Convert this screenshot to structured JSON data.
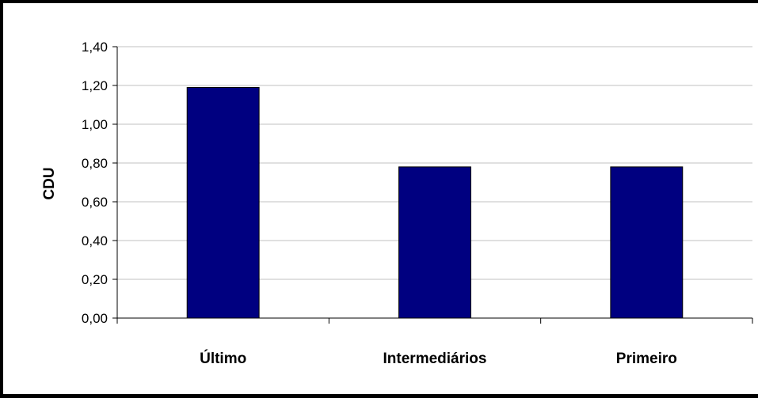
{
  "chart_data": {
    "type": "bar",
    "categories": [
      "Último",
      "Intermediários",
      "Primeiro"
    ],
    "values": [
      1.19,
      0.78,
      0.78
    ],
    "ylabel": "CDU",
    "xlabel": "",
    "ylim": [
      0,
      1.4
    ],
    "ytick_values": [
      0,
      0.2,
      0.4,
      0.6,
      0.8,
      1.0,
      1.2,
      1.4
    ],
    "ytick_labels": [
      "0,00",
      "0,20",
      "0,40",
      "0,60",
      "0,80",
      "1,00",
      "1,20",
      "1,40"
    ],
    "grid": true,
    "legend": "none",
    "bar_color": "#000080",
    "grid_color": "#c0c0c0"
  }
}
